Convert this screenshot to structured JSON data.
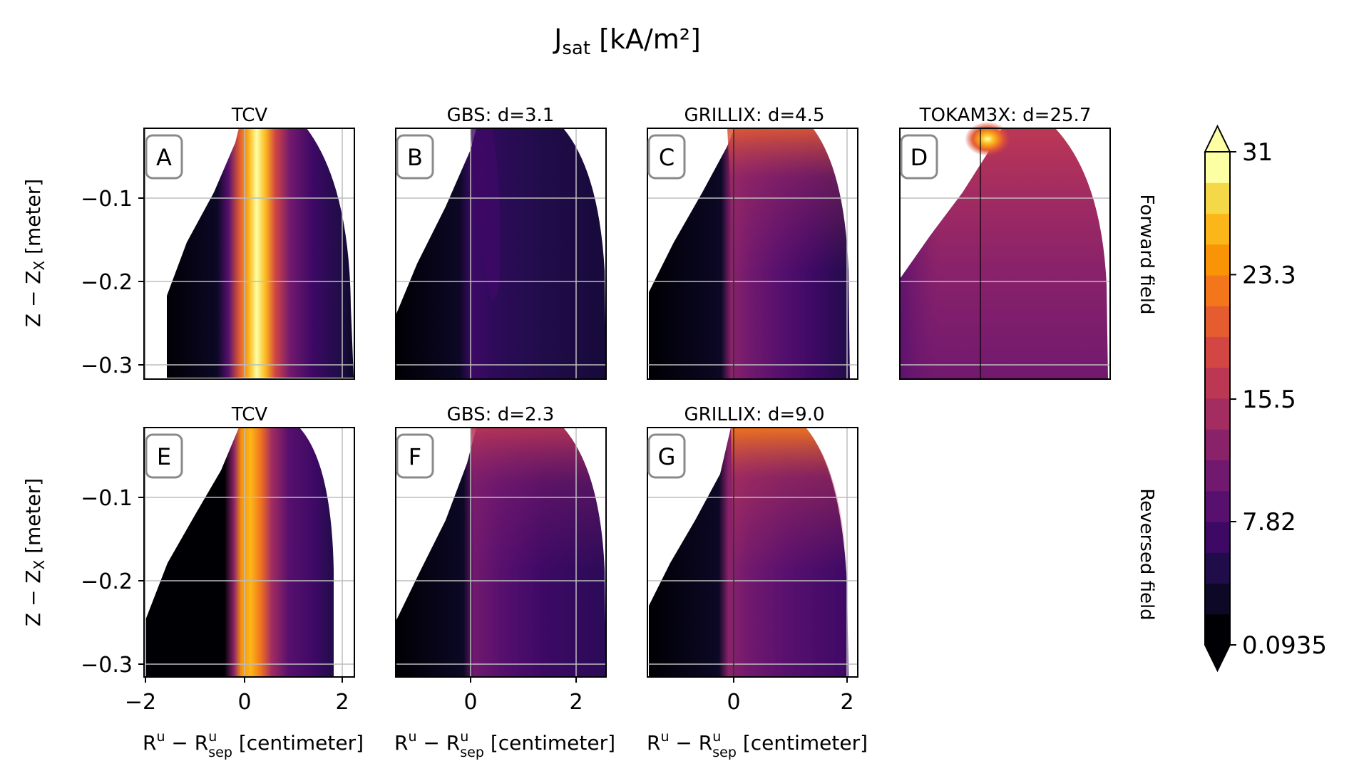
{
  "figure": {
    "title_main": "J",
    "title_sub": "sat",
    "title_unit": " [kA/m²]",
    "row_labels": [
      "Forward field",
      "Reversed field"
    ],
    "ylabel": {
      "main": "Z − Z",
      "sub": "X",
      "unit": " [meter]"
    },
    "xlabel": {
      "main": "R",
      "sup": "u",
      "mid": " − R",
      "sup2": "u",
      "sub2": "sep",
      "unit": " [centimeter]"
    }
  },
  "colorbar": {
    "colormap": "inferno",
    "ticks": [
      "31",
      "23.3",
      "15.5",
      "7.82",
      "0.0935"
    ],
    "tick_values": [
      31,
      23.3,
      15.5,
      7.82,
      0.0935
    ],
    "range": [
      0.0935,
      31
    ],
    "levels": 16,
    "extend": "both",
    "colors": [
      "#000004",
      "#0c0826",
      "#210c4a",
      "#3d0965",
      "#57106e",
      "#71196e",
      "#8a226a",
      "#a32c61",
      "#bc3754",
      "#d24644",
      "#e55c30",
      "#f3761b",
      "#fa9407",
      "#fbb61a",
      "#f4d847",
      "#fcffa4"
    ]
  },
  "y_ticks": [
    "−0.1",
    "−0.2",
    "−0.3"
  ],
  "chart_data": [
    {
      "type": "heatmap",
      "panel": "A",
      "title": "TCV",
      "field": "Forward field",
      "x_ticks": [
        "−2",
        "0",
        "2"
      ],
      "xlim": [
        -2.2,
        2.2
      ],
      "ylim": [
        -0.32,
        -0.02
      ],
      "peak_kA_m2": 31,
      "peak_location_cm": 0.1
    },
    {
      "type": "heatmap",
      "panel": "B",
      "title": "GBS: d=3.1",
      "field": "Forward field",
      "x_ticks": [
        "0",
        "2"
      ],
      "peak_kA_m2": 8
    },
    {
      "type": "heatmap",
      "panel": "C",
      "title": "GRILLIX: d=4.5",
      "field": "Forward field",
      "x_ticks": [
        "0",
        "2"
      ],
      "peak_kA_m2": 26
    },
    {
      "type": "heatmap",
      "panel": "D",
      "title": "TOKAM3X: d=25.7",
      "field": "Forward field",
      "peak_kA_m2": 31
    },
    {
      "type": "heatmap",
      "panel": "E",
      "title": "TCV",
      "field": "Reversed field",
      "x_ticks": [
        "−2",
        "0",
        "2"
      ],
      "peak_kA_m2": 27
    },
    {
      "type": "heatmap",
      "panel": "F",
      "title": "GBS: d=2.3",
      "field": "Reversed field",
      "x_ticks": [
        "0",
        "2"
      ],
      "peak_kA_m2": 16
    },
    {
      "type": "heatmap",
      "panel": "G",
      "title": "GRILLIX: d=9.0",
      "field": "Reversed field",
      "x_ticks": [
        "0",
        "2"
      ],
      "peak_kA_m2": 24
    }
  ]
}
